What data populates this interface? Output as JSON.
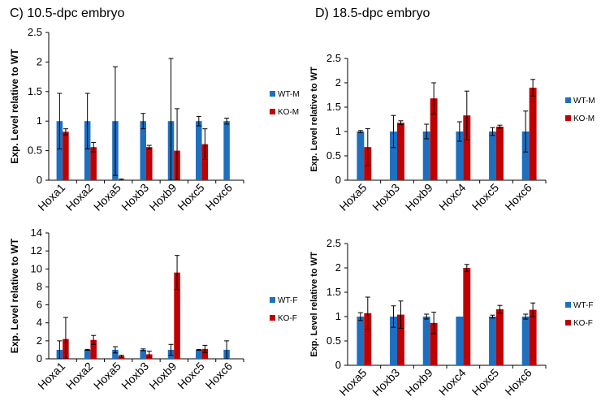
{
  "panel_titles": {
    "c": "C) 10.5-dpc embryo",
    "d": "D) 18.5-dpc embryo"
  },
  "colors": {
    "wt": "#1f6fbf",
    "ko": "#c00000"
  },
  "chart_data": [
    {
      "id": "c-male",
      "type": "bar",
      "ylabel": "Exp. Level relative to WT",
      "ylim": [
        0,
        2.5
      ],
      "ytick_labels": [
        "0",
        "0.5",
        "1",
        "1.5",
        "2",
        "2.5"
      ],
      "categories": [
        "Hoxa1",
        "Hoxa2",
        "Hoxa5",
        "Hoxb3",
        "Hoxb9",
        "Hoxc5",
        "Hoxc6"
      ],
      "series": [
        {
          "name": "WT-M",
          "values": [
            1,
            1,
            1,
            1,
            1,
            1,
            1
          ],
          "errors": [
            0.47,
            0.47,
            0.92,
            0.13,
            1.06,
            0.08,
            0.05
          ]
        },
        {
          "name": "KO-M",
          "values": [
            0.82,
            0.56,
            0.01,
            0.56,
            0.5,
            0.61,
            0.0
          ],
          "errors": [
            0.05,
            0.08,
            0.01,
            0.03,
            0.71,
            0.26,
            0.0
          ]
        }
      ],
      "legend_position": "right"
    },
    {
      "id": "c-female",
      "type": "bar",
      "ylabel": "Exp. Level relative to WT",
      "ylim": [
        0,
        14
      ],
      "ytick_labels": [
        "0",
        "2",
        "4",
        "6",
        "8",
        "10",
        "12",
        "14"
      ],
      "categories": [
        "Hoxa1",
        "Hoxa2",
        "Hoxa5",
        "Hoxb3",
        "Hoxb9",
        "Hoxc5",
        "Hoxc6"
      ],
      "series": [
        {
          "name": "WT-F",
          "values": [
            1,
            1,
            1,
            1,
            1,
            1,
            1
          ],
          "errors": [
            1.0,
            0.05,
            0.35,
            0.1,
            0.6,
            0.05,
            1.0
          ]
        },
        {
          "name": "KO-F",
          "values": [
            2.2,
            2.1,
            0.3,
            0.5,
            9.6,
            1.1,
            0.0
          ],
          "errors": [
            2.4,
            0.5,
            0.1,
            0.35,
            1.9,
            0.4,
            0.0
          ]
        }
      ],
      "legend_position": "right"
    },
    {
      "id": "d-male",
      "type": "bar",
      "ylabel": "Exp. Level relative to WT",
      "ylim": [
        0,
        2.5
      ],
      "ytick_labels": [
        "0",
        "0.5",
        "1",
        "1.5",
        "2",
        "2.5"
      ],
      "categories": [
        "Hoxa5",
        "Hoxb3",
        "Hoxb9",
        "Hoxc4",
        "Hoxc5",
        "Hoxc6"
      ],
      "series": [
        {
          "name": "WT-M",
          "values": [
            1,
            1,
            1,
            1,
            1,
            1
          ],
          "errors": [
            0.02,
            0.33,
            0.15,
            0.2,
            0.08,
            0.42
          ]
        },
        {
          "name": "KO-M",
          "values": [
            0.68,
            1.18,
            1.68,
            1.33,
            1.1,
            1.9
          ],
          "errors": [
            0.38,
            0.04,
            0.32,
            0.5,
            0.03,
            0.17
          ]
        }
      ],
      "legend_position": "right"
    },
    {
      "id": "d-female",
      "type": "bar",
      "ylabel": "Exp. Level relative to WT",
      "ylim": [
        0,
        2.5
      ],
      "ytick_labels": [
        "0",
        "0.5",
        "1",
        "1.5",
        "2",
        "2.5"
      ],
      "categories": [
        "Hoxa5",
        "Hoxb3",
        "Hoxb9",
        "Hoxc4",
        "Hoxc5",
        "Hoxc6"
      ],
      "series": [
        {
          "name": "WT-F",
          "values": [
            1,
            1,
            1,
            1,
            1,
            1
          ],
          "errors": [
            0.08,
            0.22,
            0.05,
            0.0,
            0.03,
            0.05
          ]
        },
        {
          "name": "KO-F",
          "values": [
            1.07,
            1.04,
            0.87,
            2.0,
            1.15,
            1.14
          ],
          "errors": [
            0.33,
            0.28,
            0.22,
            0.07,
            0.08,
            0.14
          ]
        }
      ],
      "legend_position": "right"
    }
  ]
}
